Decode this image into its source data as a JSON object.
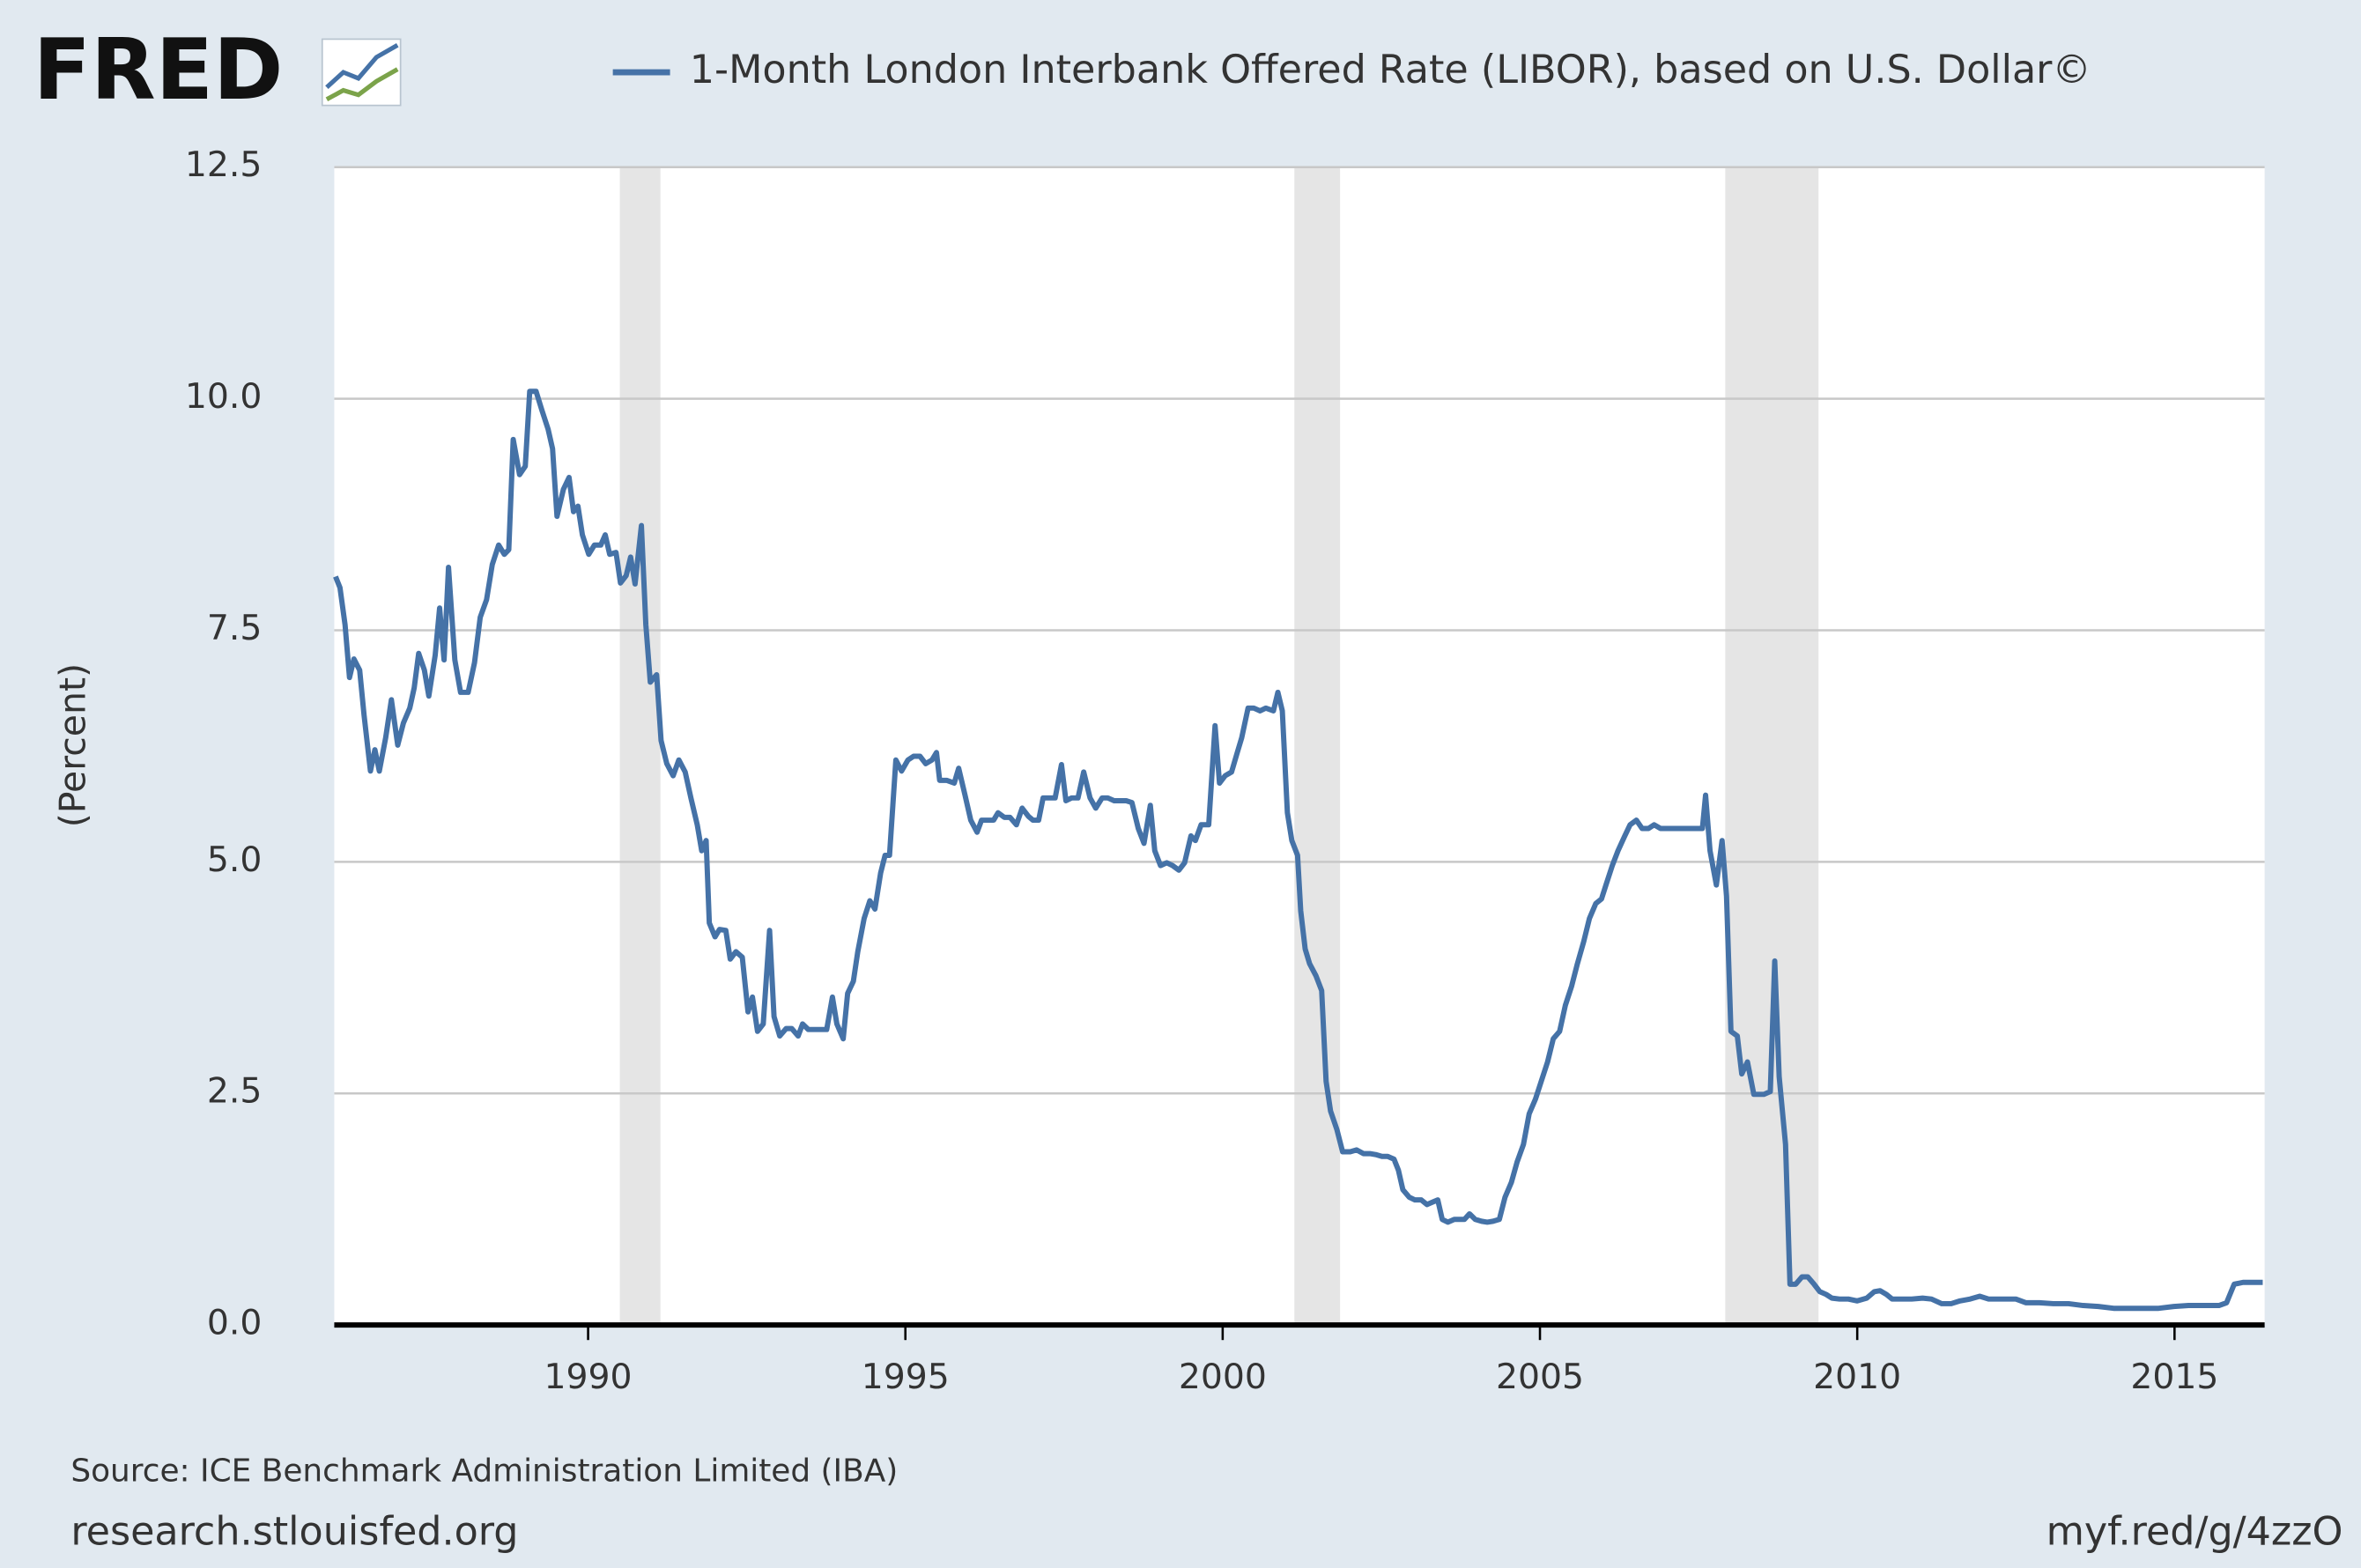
{
  "logo": "FRED",
  "footer": {
    "source": "Source: ICE Benchmark Administration Limited (IBA)",
    "site": "research.stlouisfed.org",
    "short_link": "myf.red/g/4zzO"
  },
  "chart_data": {
    "type": "line",
    "y_label": "(Percent)",
    "xlim": [
      1986.0,
      2016.42
    ],
    "xticks": [
      1990,
      1995,
      2000,
      2005,
      2010,
      2015
    ],
    "ylim": [
      0,
      12.5
    ],
    "yticks": [
      {
        "value": 0,
        "label": "0.0"
      },
      2.5,
      {
        "value": 5,
        "label": "5.0"
      },
      7.5,
      {
        "value": 10,
        "label": "10.0"
      },
      12.5
    ],
    "grid": true,
    "recessions": [
      [
        1990.5,
        1991.14
      ],
      [
        2001.13,
        2001.85
      ],
      [
        2007.92,
        2009.39
      ]
    ],
    "recession_color": "#e5e5e5",
    "x": [
      1986.02,
      1986.09,
      1986.17,
      1986.24,
      1986.31,
      1986.4,
      1986.47,
      1986.57,
      1986.64,
      1986.71,
      1986.81,
      1986.9,
      1987.0,
      1987.09,
      1987.19,
      1987.26,
      1987.33,
      1987.42,
      1987.49,
      1987.59,
      1987.66,
      1987.73,
      1987.8,
      1987.9,
      1987.99,
      1988.11,
      1988.21,
      1988.3,
      1988.4,
      1988.49,
      1988.59,
      1988.68,
      1988.75,
      1988.82,
      1988.92,
      1989.01,
      1989.08,
      1989.18,
      1989.27,
      1989.37,
      1989.44,
      1989.51,
      1989.61,
      1989.7,
      1989.77,
      1989.84,
      1989.91,
      1990.01,
      1990.1,
      1990.2,
      1990.27,
      1990.34,
      1990.44,
      1990.51,
      1990.6,
      1990.67,
      1990.74,
      1990.84,
      1990.91,
      1990.98,
      1991.08,
      1991.15,
      1991.24,
      1991.34,
      1991.43,
      1991.53,
      1991.62,
      1991.72,
      1991.79,
      1991.86,
      1991.91,
      1992.0,
      1992.07,
      1992.17,
      1992.24,
      1992.33,
      1992.43,
      1992.52,
      1992.59,
      1992.67,
      1992.76,
      1992.86,
      1992.93,
      1993.02,
      1993.12,
      1993.21,
      1993.31,
      1993.38,
      1993.47,
      1993.57,
      1993.66,
      1993.76,
      1993.85,
      1993.92,
      1994.02,
      1994.09,
      1994.18,
      1994.25,
      1994.35,
      1994.44,
      1994.52,
      1994.61,
      1994.68,
      1994.75,
      1994.85,
      1994.94,
      1995.04,
      1995.13,
      1995.23,
      1995.32,
      1995.42,
      1995.49,
      1995.54,
      1995.65,
      1995.77,
      1995.84,
      1995.94,
      1996.03,
      1996.13,
      1996.2,
      1996.29,
      1996.39,
      1996.46,
      1996.56,
      1996.65,
      1996.75,
      1996.84,
      1996.94,
      1997.01,
      1997.1,
      1997.17,
      1997.27,
      1997.36,
      1997.46,
      1997.53,
      1997.62,
      1997.72,
      1997.81,
      1997.91,
      1998.0,
      1998.1,
      1998.19,
      1998.29,
      1998.38,
      1998.48,
      1998.57,
      1998.67,
      1998.76,
      1998.86,
      1998.93,
      1999.02,
      1999.12,
      1999.21,
      1999.31,
      1999.4,
      1999.5,
      1999.57,
      1999.66,
      1999.78,
      1999.88,
      1999.95,
      2000.04,
      2000.14,
      2000.23,
      2000.3,
      2000.4,
      2000.49,
      2000.59,
      2000.68,
      2000.8,
      2000.87,
      2000.94,
      2001.02,
      2001.09,
      2001.18,
      2001.23,
      2001.3,
      2001.37,
      2001.47,
      2001.56,
      2001.63,
      2001.7,
      2001.8,
      2001.89,
      2002.01,
      2002.11,
      2002.22,
      2002.32,
      2002.41,
      2002.51,
      2002.6,
      2002.7,
      2002.77,
      2002.84,
      2002.94,
      2003.03,
      2003.13,
      2003.22,
      2003.32,
      2003.39,
      2003.46,
      2003.55,
      2003.65,
      2003.74,
      2003.81,
      2003.89,
      2003.98,
      2004.08,
      2004.17,
      2004.26,
      2004.36,
      2004.45,
      2004.55,
      2004.64,
      2004.74,
      2004.83,
      2004.93,
      2005.02,
      2005.12,
      2005.21,
      2005.31,
      2005.4,
      2005.5,
      2005.59,
      2005.69,
      2005.78,
      2005.88,
      2005.97,
      2006.04,
      2006.14,
      2006.23,
      2006.33,
      2006.42,
      2006.52,
      2006.61,
      2006.71,
      2006.8,
      2006.9,
      2006.99,
      2007.09,
      2007.18,
      2007.28,
      2007.37,
      2007.47,
      2007.56,
      2007.61,
      2007.68,
      2007.78,
      2007.87,
      2007.94,
      2008.01,
      2008.11,
      2008.18,
      2008.27,
      2008.37,
      2008.46,
      2008.53,
      2008.63,
      2008.7,
      2008.77,
      2008.87,
      2008.94,
      2009.03,
      2009.13,
      2009.22,
      2009.32,
      2009.41,
      2009.51,
      2009.6,
      2009.72,
      2009.86,
      2010.0,
      2010.15,
      2010.27,
      2010.36,
      2010.46,
      2010.55,
      2010.69,
      2010.86,
      2011.03,
      2011.17,
      2011.33,
      2011.48,
      2011.62,
      2011.78,
      2011.93,
      2012.07,
      2012.28,
      2012.5,
      2012.66,
      2012.87,
      2013.09,
      2013.33,
      2013.56,
      2013.8,
      2014.04,
      2014.27,
      2014.51,
      2014.75,
      2014.99,
      2015.22,
      2015.46,
      2015.7,
      2015.82,
      2015.94,
      2016.08,
      2016.24,
      2016.39
    ],
    "series": [
      {
        "name": "1-Month London Interbank Offered Rate (LIBOR), based on U.S. Dollar©",
        "color": "#4572a7",
        "values": [
          8.08,
          7.96,
          7.56,
          6.99,
          7.19,
          7.07,
          6.58,
          5.98,
          6.21,
          5.98,
          6.34,
          6.75,
          6.26,
          6.5,
          6.66,
          6.88,
          7.25,
          7.07,
          6.79,
          7.23,
          7.74,
          7.18,
          8.18,
          7.18,
          6.83,
          6.83,
          7.15,
          7.64,
          7.83,
          8.21,
          8.42,
          8.32,
          8.37,
          9.56,
          9.18,
          9.27,
          10.08,
          10.08,
          9.88,
          9.67,
          9.46,
          8.73,
          9.02,
          9.15,
          8.78,
          8.84,
          8.53,
          8.32,
          8.42,
          8.42,
          8.53,
          8.32,
          8.34,
          8.01,
          8.09,
          8.29,
          8.0,
          8.63,
          7.56,
          6.94,
          7.02,
          6.31,
          6.06,
          5.93,
          6.1,
          5.97,
          5.69,
          5.4,
          5.12,
          5.23,
          4.34,
          4.19,
          4.27,
          4.26,
          3.95,
          4.03,
          3.97,
          3.38,
          3.54,
          3.17,
          3.25,
          4.26,
          3.33,
          3.12,
          3.2,
          3.2,
          3.12,
          3.25,
          3.19,
          3.19,
          3.19,
          3.19,
          3.54,
          3.25,
          3.09,
          3.58,
          3.71,
          4.03,
          4.39,
          4.58,
          4.49,
          4.88,
          5.07,
          5.07,
          6.1,
          5.98,
          6.1,
          6.14,
          6.14,
          6.06,
          6.1,
          6.18,
          5.88,
          5.88,
          5.85,
          6.01,
          5.72,
          5.45,
          5.32,
          5.45,
          5.45,
          5.45,
          5.53,
          5.48,
          5.48,
          5.4,
          5.58,
          5.49,
          5.45,
          5.45,
          5.69,
          5.69,
          5.69,
          6.05,
          5.66,
          5.69,
          5.69,
          5.97,
          5.69,
          5.58,
          5.69,
          5.69,
          5.66,
          5.66,
          5.66,
          5.64,
          5.36,
          5.2,
          5.61,
          5.12,
          4.96,
          4.99,
          4.96,
          4.91,
          4.99,
          5.28,
          5.23,
          5.4,
          5.4,
          6.47,
          5.85,
          5.93,
          5.97,
          6.18,
          6.34,
          6.66,
          6.66,
          6.63,
          6.66,
          6.63,
          6.83,
          6.63,
          5.53,
          5.23,
          5.07,
          4.47,
          4.06,
          3.9,
          3.77,
          3.61,
          2.63,
          2.31,
          2.11,
          1.87,
          1.87,
          1.89,
          1.85,
          1.85,
          1.84,
          1.82,
          1.82,
          1.79,
          1.67,
          1.46,
          1.38,
          1.35,
          1.35,
          1.3,
          1.33,
          1.35,
          1.14,
          1.11,
          1.14,
          1.14,
          1.14,
          1.2,
          1.14,
          1.12,
          1.11,
          1.12,
          1.14,
          1.38,
          1.54,
          1.76,
          1.95,
          2.28,
          2.44,
          2.63,
          2.84,
          3.09,
          3.17,
          3.45,
          3.66,
          3.9,
          4.14,
          4.39,
          4.55,
          4.6,
          4.75,
          4.96,
          5.12,
          5.27,
          5.4,
          5.45,
          5.36,
          5.36,
          5.4,
          5.36,
          5.36,
          5.36,
          5.36,
          5.36,
          5.36,
          5.36,
          5.36,
          5.72,
          5.12,
          4.75,
          5.23,
          4.63,
          3.17,
          3.12,
          2.71,
          2.84,
          2.49,
          2.49,
          2.49,
          2.52,
          3.93,
          2.68,
          1.95,
          0.44,
          0.44,
          0.52,
          0.52,
          0.44,
          0.36,
          0.33,
          0.29,
          0.28,
          0.28,
          0.26,
          0.29,
          0.36,
          0.37,
          0.33,
          0.28,
          0.28,
          0.28,
          0.29,
          0.28,
          0.23,
          0.23,
          0.26,
          0.28,
          0.31,
          0.28,
          0.28,
          0.28,
          0.24,
          0.24,
          0.23,
          0.23,
          0.21,
          0.2,
          0.18,
          0.18,
          0.18,
          0.18,
          0.2,
          0.21,
          0.21,
          0.21,
          0.24,
          0.44,
          0.46,
          0.46,
          0.46
        ]
      }
    ]
  }
}
